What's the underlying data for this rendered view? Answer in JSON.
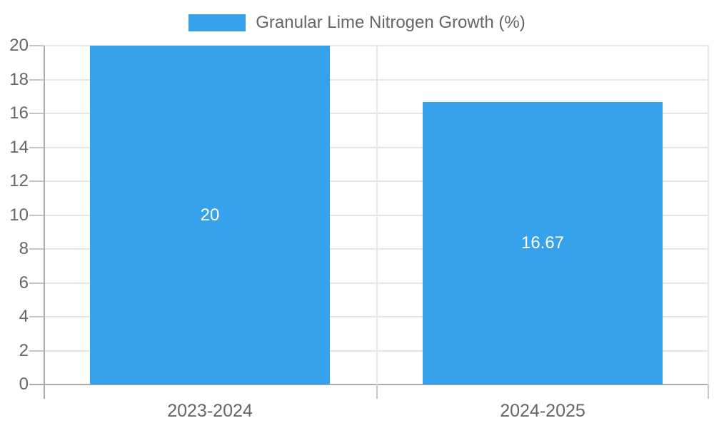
{
  "chart_data": {
    "type": "bar",
    "title": "",
    "legend": {
      "position": "top",
      "label": "Granular Lime Nitrogen Growth (%)"
    },
    "categories": [
      "2023-2024",
      "2024-2025"
    ],
    "series": [
      {
        "name": "Granular Lime Nitrogen Growth (%)",
        "values": [
          20,
          16.67
        ],
        "color": "#36A2EB"
      }
    ],
    "data_labels": [
      "20",
      "16.67"
    ],
    "xlabel": "",
    "ylabel": "",
    "ylim": [
      0,
      20
    ],
    "yticks": [
      0,
      2,
      4,
      6,
      8,
      10,
      12,
      14,
      16,
      18,
      20
    ],
    "grid": true,
    "bar_fraction_of_category": 0.72
  },
  "colors": {
    "bar": "#36A2EB",
    "grid_line": "#E6E6E6",
    "axis_line": "#ABABAB",
    "tick_mark": "#C6C6C6",
    "label_text": "#666666",
    "data_label_text": "#FFFFFF",
    "background": "#FFFFFF"
  }
}
